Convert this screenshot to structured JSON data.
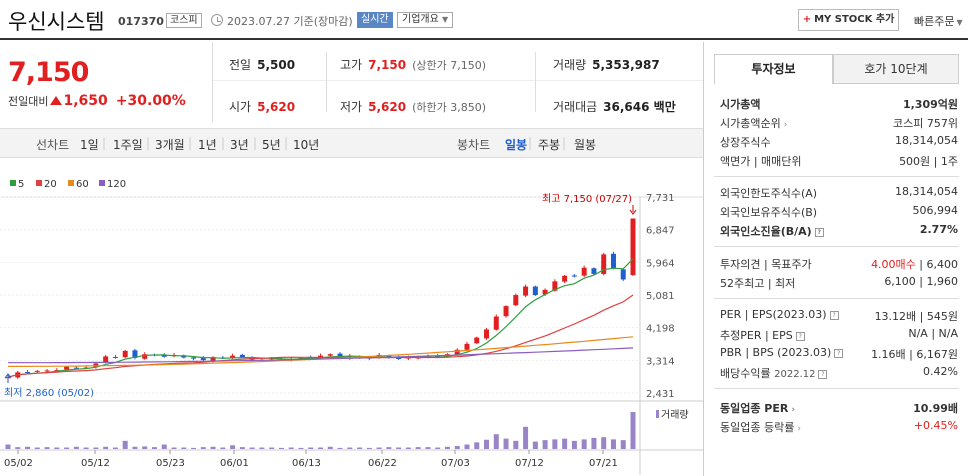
{
  "header": {
    "name": "우신시스템",
    "code": "017370",
    "market": "코스피",
    "date": "2023.07.27 기준(장마감)",
    "realtime": "실시간",
    "company_info": "기업개요",
    "mystock": "MY STOCK 추가",
    "quick_order": "빠른주문"
  },
  "price": {
    "current": "7,150",
    "change_label": "전일대비",
    "change": "1,650",
    "change_pct": "+30.00%"
  },
  "summary": {
    "prev_label": "전일",
    "prev": "5,500",
    "high_label": "고가",
    "high": "7,150",
    "upper_limit": "(상한가 7,150)",
    "volume_label": "거래량",
    "volume": "5,353,987",
    "open_label": "시가",
    "open": "5,620",
    "low_label": "저가",
    "low": "5,620",
    "lower_limit": "(하한가 3,850)",
    "amount_label": "거래대금",
    "amount": "36,646 백만"
  },
  "periods": {
    "line_title": "선차트",
    "line": [
      "1일",
      "1주일",
      "3개월",
      "1년",
      "3년",
      "5년",
      "10년"
    ],
    "candle_title": "봉차트",
    "candle": [
      "일봉",
      "주봉",
      "월봉"
    ],
    "candle_active": "일봉"
  },
  "chart_data": {
    "type": "candlestick",
    "legend": [
      "5",
      "20",
      "60",
      "120"
    ],
    "legend_colors": [
      "#2e9e3e",
      "#e04040",
      "#e88a1a",
      "#8a5ec0"
    ],
    "yticks": [
      "7,731",
      "6,847",
      "5,964",
      "5,081",
      "4,198",
      "3,314",
      "2,431"
    ],
    "ylim": [
      2431,
      7731
    ],
    "xticks": [
      "05/02",
      "05/12",
      "05/23",
      "06/01",
      "06/13",
      "06/22",
      "07/03",
      "07/12",
      "07/21"
    ],
    "high_label": "최고 7,150 (07/27)",
    "low_label": "최저 2,860 (05/02)",
    "volume_label": "거래량",
    "closes": [
      2860,
      2990,
      2990,
      3030,
      3040,
      3050,
      3140,
      3110,
      3120,
      3230,
      3420,
      3400,
      3570,
      3380,
      3480,
      3460,
      3410,
      3460,
      3390,
      3360,
      3320,
      3400,
      3380,
      3440,
      3400,
      3330,
      3330,
      3380,
      3330,
      3350,
      3380,
      3400,
      3440,
      3480,
      3390,
      3430,
      3380,
      3360,
      3460,
      3400,
      3350,
      3390,
      3420,
      3430,
      3400,
      3480,
      3600,
      3760,
      3930,
      4150,
      4500,
      4780,
      5080,
      5310,
      5080,
      5220,
      5450,
      5600,
      5580,
      5820,
      5650,
      6180,
      5800,
      5500,
      7150
    ],
    "volumes": [
      0.12,
      0.05,
      0.06,
      0.04,
      0.05,
      0.04,
      0.04,
      0.06,
      0.04,
      0.04,
      0.06,
      0.04,
      0.22,
      0.06,
      0.07,
      0.05,
      0.12,
      0.04,
      0.04,
      0.03,
      0.05,
      0.06,
      0.04,
      0.1,
      0.05,
      0.04,
      0.04,
      0.04,
      0.03,
      0.04,
      0.03,
      0.04,
      0.04,
      0.06,
      0.03,
      0.04,
      0.04,
      0.03,
      0.04,
      0.05,
      0.04,
      0.04,
      0.05,
      0.05,
      0.04,
      0.06,
      0.08,
      0.12,
      0.18,
      0.25,
      0.4,
      0.28,
      0.22,
      0.6,
      0.2,
      0.24,
      0.26,
      0.28,
      0.22,
      0.26,
      0.3,
      0.32,
      0.26,
      0.24,
      1.0
    ]
  },
  "tabs": {
    "invest": "투자정보",
    "hoga": "호가 10단계"
  },
  "info": {
    "mcap_label": "시가총액",
    "mcap": "1,309억원",
    "rank_label": "시가총액순위",
    "rank": "코스피 757위",
    "shares_label": "상장주식수",
    "shares": "18,314,054",
    "par_label": "액면가 | 매매단위",
    "par": "500원 | 1주",
    "foreign_limit_label": "외국인한도주식수(A)",
    "foreign_limit": "18,314,054",
    "foreign_hold_label": "외국인보유주식수(B)",
    "foreign_hold": "506,994",
    "foreign_ratio_label": "외국인소진율(B/A)",
    "foreign_ratio": "2.77%",
    "opinion_label": "투자의견 | 목표주가",
    "opinion": "4.00매수",
    "target": "6,400",
    "w52_label": "52주최고 | 최저",
    "w52": "6,100 | 1,960",
    "per_label": "PER | EPS(2023.03)",
    "per": "13.12배 | 545원",
    "est_label": "추정PER | EPS",
    "est": "N/A | N/A",
    "pbr_label": "PBR | BPS (2023.03)",
    "pbr": "1.16배 | 6,167원",
    "div_label": "배당수익률",
    "div_date": "2022.12",
    "div": "0.42%",
    "ind_per_label": "동일업종 PER",
    "ind_per": "10.99배",
    "ind_chg_label": "동일업종 등락률",
    "ind_chg": "+0.45%"
  }
}
